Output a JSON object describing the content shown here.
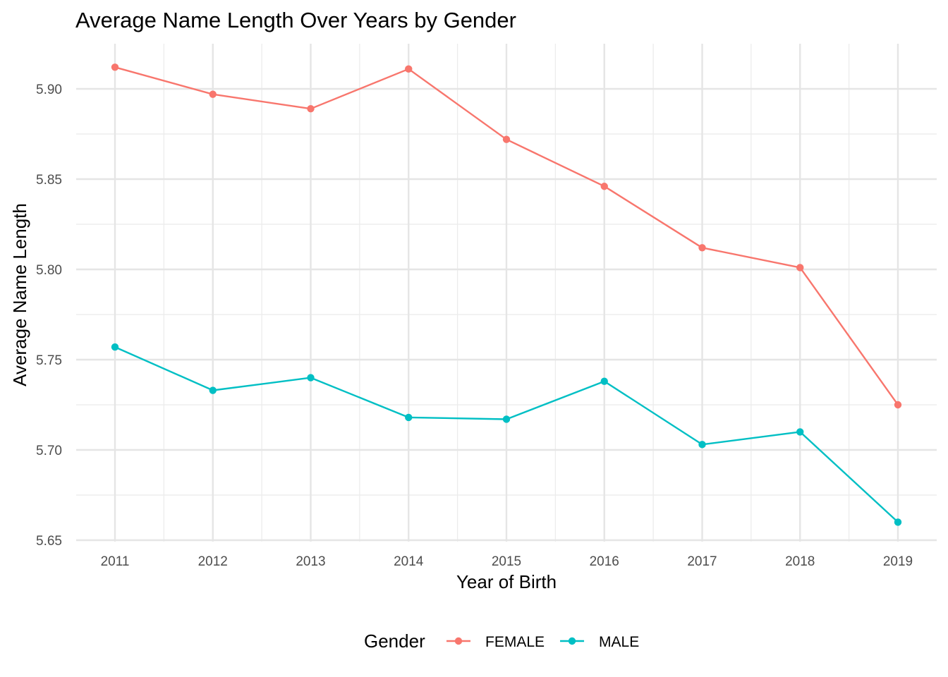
{
  "chart_data": {
    "type": "line",
    "title": "Average Name Length Over Years by Gender",
    "xlabel": "Year of Birth",
    "ylabel": "Average Name Length",
    "x": [
      2011,
      2012,
      2013,
      2014,
      2015,
      2016,
      2017,
      2018,
      2019
    ],
    "x_tick_labels": [
      "2011",
      "2012",
      "2013",
      "2014",
      "2015",
      "2016",
      "2017",
      "2018",
      "2019"
    ],
    "y_ticks": [
      5.65,
      5.7,
      5.75,
      5.8,
      5.85,
      5.9
    ],
    "y_tick_labels": [
      "5.65",
      "5.70",
      "5.75",
      "5.80",
      "5.85",
      "5.90"
    ],
    "ylim": [
      5.65,
      5.92
    ],
    "grid": true,
    "legend": {
      "title": "Gender",
      "placement": "bottom"
    },
    "series": [
      {
        "name": "FEMALE",
        "color": "#F8766D",
        "values": [
          5.912,
          5.897,
          5.889,
          5.911,
          5.872,
          5.846,
          5.812,
          5.801,
          5.725
        ]
      },
      {
        "name": "MALE",
        "color": "#00BFC4",
        "values": [
          5.757,
          5.733,
          5.74,
          5.718,
          5.717,
          5.738,
          5.703,
          5.71,
          5.66
        ]
      }
    ]
  }
}
